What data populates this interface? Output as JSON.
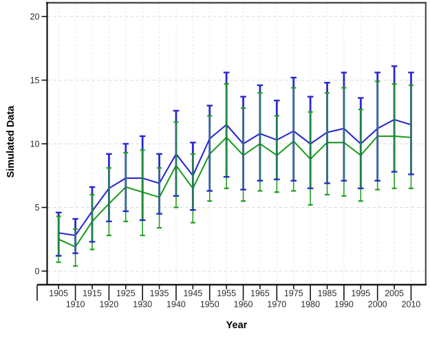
{
  "chart_data": {
    "type": "line",
    "title": "",
    "xlabel": "Year",
    "ylabel": "Simulated Data",
    "x": [
      1905,
      1910,
      1915,
      1920,
      1925,
      1930,
      1935,
      1940,
      1945,
      1950,
      1955,
      1960,
      1965,
      1970,
      1975,
      1980,
      1985,
      1990,
      1995,
      2000,
      2005,
      2010
    ],
    "x_tick_label_rows": "staggered",
    "y_ticks": [
      0,
      5,
      10,
      15,
      20
    ],
    "ylim": [
      -1.1,
      21.1
    ],
    "grid": "dashed-both-axes",
    "legend": "none",
    "error_bars": true,
    "series": [
      {
        "name": "series-blue",
        "color": "#2929cf",
        "means": [
          3.0,
          2.8,
          4.7,
          6.5,
          7.3,
          7.3,
          6.9,
          9.2,
          7.5,
          10.4,
          11.5,
          10.0,
          10.8,
          10.3,
          11.0,
          10.0,
          10.9,
          11.2,
          10.0,
          11.2,
          11.9,
          11.5
        ],
        "upper": [
          4.6,
          4.1,
          6.6,
          9.2,
          10.0,
          10.6,
          9.2,
          12.6,
          10.1,
          13.0,
          15.6,
          13.7,
          14.6,
          13.4,
          15.2,
          13.7,
          14.8,
          15.6,
          13.6,
          15.6,
          16.1,
          15.6
        ],
        "lower": [
          1.2,
          1.4,
          2.3,
          3.9,
          4.7,
          4.0,
          4.5,
          5.9,
          4.8,
          6.3,
          7.4,
          6.4,
          7.1,
          7.2,
          7.1,
          6.5,
          6.9,
          7.1,
          6.5,
          7.1,
          7.8,
          7.6
        ]
      },
      {
        "name": "series-green",
        "color": "#1f9e1f",
        "means": [
          2.5,
          1.9,
          3.9,
          5.3,
          6.6,
          6.2,
          5.8,
          8.3,
          6.5,
          9.2,
          10.5,
          9.1,
          10.0,
          9.1,
          10.2,
          8.8,
          10.1,
          10.1,
          9.1,
          10.6,
          10.6,
          10.5
        ],
        "upper": [
          4.3,
          3.3,
          6.0,
          8.1,
          9.3,
          9.5,
          8.1,
          11.7,
          9.2,
          12.2,
          14.7,
          12.8,
          14.0,
          12.2,
          14.4,
          12.5,
          14.0,
          14.4,
          12.7,
          14.9,
          14.7,
          14.6
        ],
        "lower": [
          0.7,
          0.4,
          1.7,
          2.8,
          3.9,
          2.8,
          3.4,
          5.0,
          3.8,
          5.5,
          6.5,
          5.5,
          6.3,
          6.2,
          6.3,
          5.2,
          6.0,
          5.9,
          5.5,
          6.4,
          6.5,
          6.5
        ]
      }
    ],
    "colors": {
      "grid": "#d8d8d8",
      "axis": "#111111",
      "frame": "#4d4d4d",
      "tick_label": "#2b2b2b"
    }
  }
}
